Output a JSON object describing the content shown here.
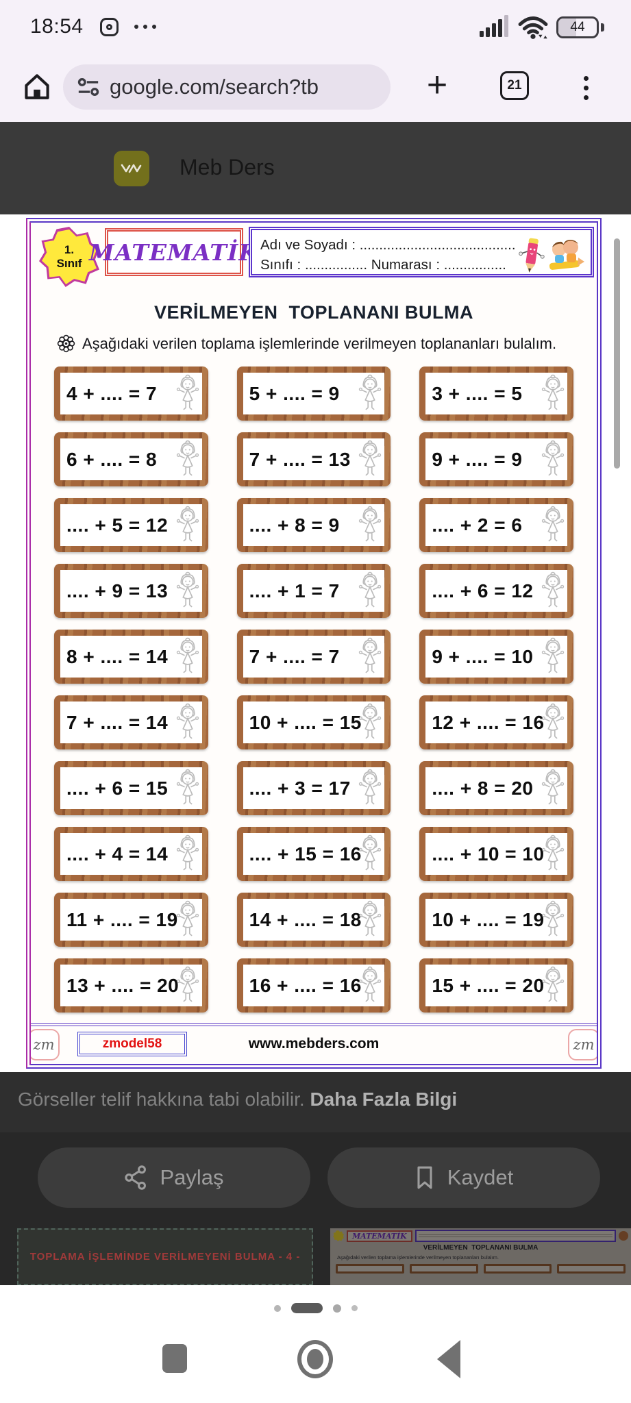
{
  "status_bar": {
    "time": "18:54",
    "battery_percent": "44"
  },
  "browser": {
    "url": "google.com/search?tb",
    "tab_count": "21"
  },
  "viewer": {
    "app_name": "Meb Ders"
  },
  "worksheet": {
    "grade_badge": {
      "line1": "1.",
      "line2": "Sınıf"
    },
    "subject": "MATEMATİK",
    "name_line": "Adı ve Soyadı : ..........................................",
    "class_line": "Sınıfı : ................  Numarası : ................",
    "title": "VERİLMEYEN  TOPLANANI BULMA",
    "instruction": "Aşağıdaki verilen toplama işlemlerinde verilmeyen toplananları bulalım.",
    "problems": [
      "4 + .... = 7",
      "5 + .... = 9",
      "3 + .... = 5",
      "6 + .... = 8",
      "7 + .... = 13",
      "9 + .... = 9",
      ".... + 5 = 12",
      ".... + 8 = 9",
      ".... + 2 = 6",
      ".... + 9 = 13",
      ".... + 1 = 7",
      ".... + 6 = 12",
      "8 + .... = 14",
      "7 + .... = 7",
      "9 + .... = 10",
      "7 + .... = 14",
      "10 + .... = 15",
      "12 + .... = 16",
      ".... + 6 = 15",
      ".... + 3 = 17",
      ".... + 8 = 20",
      ".... + 4 = 14",
      ".... + 15 = 16",
      ".... + 10 = 10",
      "11 + .... = 19",
      "14 + .... = 18",
      "10 + .... = 19",
      "13 + .... = 20",
      "16 + .... = 16",
      "15 + .... = 20"
    ],
    "footer": {
      "left_badge": "zm",
      "code": "zmodel58",
      "site": "www.mebders.com",
      "right_badge": "zm"
    }
  },
  "caption": {
    "text": "Görseller telif hakkına tabi olabilir. ",
    "link": "Daha Fazla Bilgi"
  },
  "actions": {
    "share_label": "Paylaş",
    "save_label": "Kaydet"
  },
  "thumbnails": {
    "left_title": "TOPLAMA İŞLEMİNDE VERİLMEYENİ BULMA - 4 -",
    "right_subject": "MATEMATİK",
    "right_title": "VERİLMEYEN  TOPLANANI BULMA"
  },
  "carousel": {
    "dots": [
      "small",
      "active",
      "medium",
      "tiny"
    ],
    "active_index": 1
  },
  "icons": {
    "overflow_dots": "•••",
    "plus": "+",
    "rosette": "flower-rosette",
    "nav": [
      "recents-square",
      "home-circle",
      "back-triangle"
    ]
  },
  "colors": {
    "accent_purple": "#5936c6",
    "accent_magenta": "#aa2ba8",
    "subject_red": "#dd5348",
    "subject_text_purple": "#7b2fc4",
    "badge_yellow": "#ffe93c",
    "wood_brown": "#a5673c",
    "code_red": "#e21212",
    "toolbar_bg": "#f6f1f9",
    "dark_bg": "#2f2f2f",
    "app_icon_olive": "#73701c"
  }
}
